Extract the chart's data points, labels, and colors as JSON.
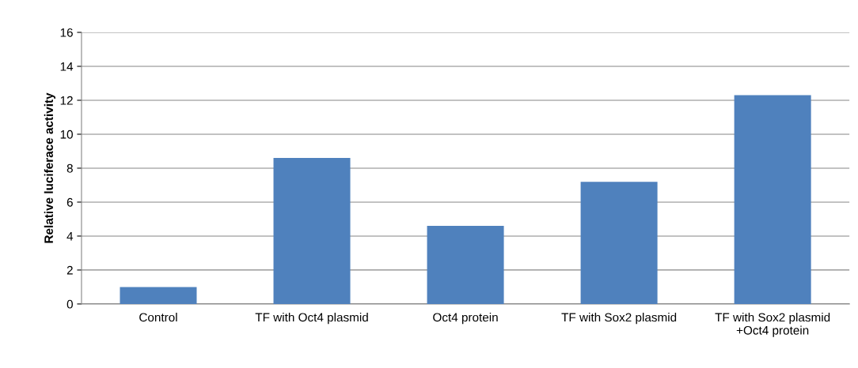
{
  "chart_data": {
    "type": "bar",
    "ylabel": "Relative luciferace activity",
    "categories": [
      "Control",
      "TF with Oct4 plasmid",
      "Oct4 protein",
      "TF with Sox2 plasmid",
      "TF with Sox2 plasmid\n+Oct4 protein"
    ],
    "values": [
      1.0,
      8.6,
      4.6,
      7.2,
      12.3
    ],
    "color": "#4f81bd",
    "ylim": [
      0,
      16
    ],
    "yticks": [
      0,
      2,
      4,
      6,
      8,
      10,
      12,
      14,
      16
    ],
    "grid": "y"
  }
}
